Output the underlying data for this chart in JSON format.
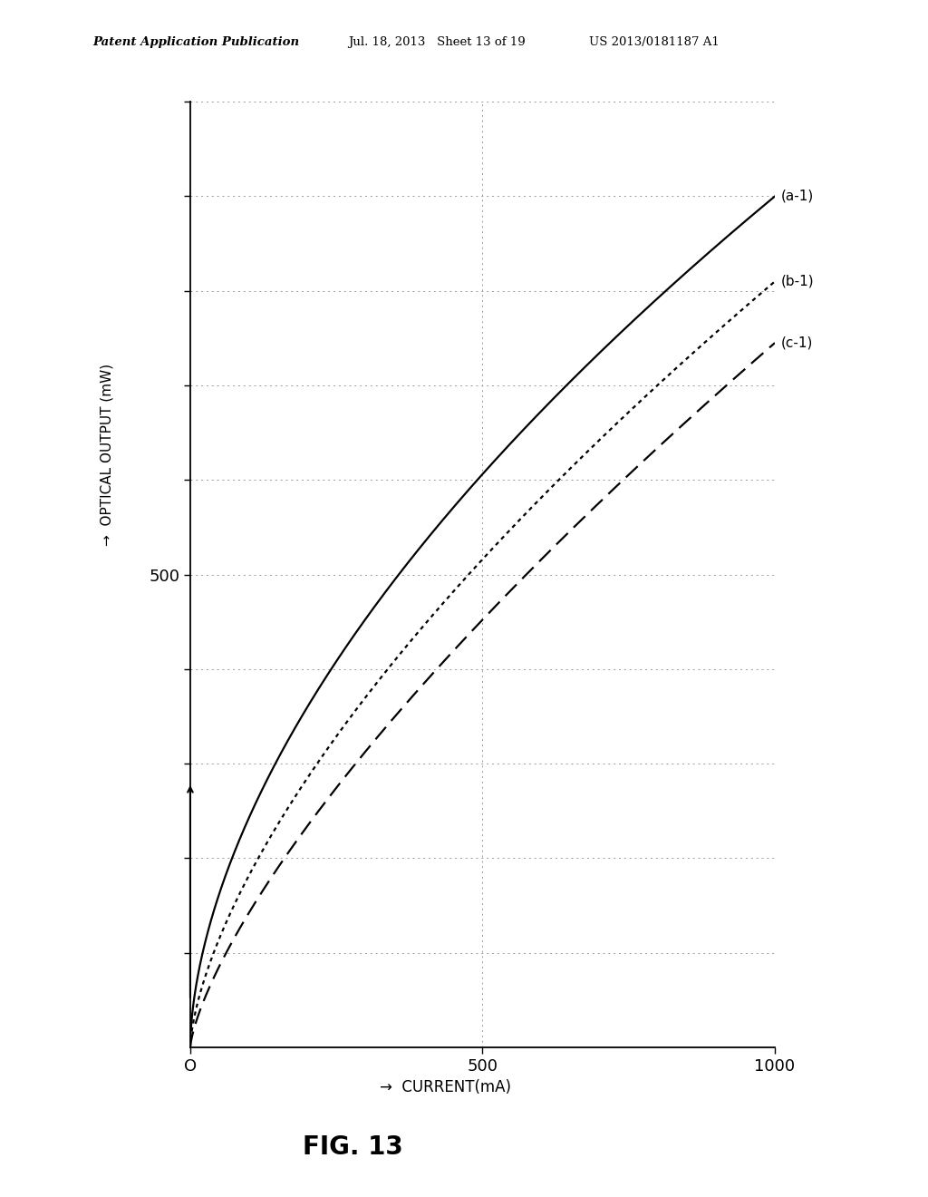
{
  "header_left": "Patent Application Publication",
  "header_mid": "Jul. 18, 2013   Sheet 13 of 19",
  "header_right": "US 2013/0181187 A1",
  "fig_label": "FIG. 13",
  "xlim": [
    0,
    1000
  ],
  "ylim": [
    0,
    1000
  ],
  "background_color": "#ffffff",
  "curve_color": "#000000",
  "grid_color": "#999999",
  "curves": [
    {
      "label": "(a-1)",
      "style": "solid",
      "y_end": 900
    },
    {
      "label": "(b-1)",
      "style": "dotted",
      "y_end": 810
    },
    {
      "label": "(c-1)",
      "style": "dashed",
      "y_end": 745
    }
  ],
  "curve_a_power": 0.57,
  "curve_b_power": 0.65,
  "curve_c_power": 0.72,
  "ytick_positions": [
    100,
    200,
    300,
    400,
    500,
    600,
    700,
    800,
    900,
    1000
  ],
  "xtick_positions": [
    0,
    500,
    1000
  ],
  "ylabel_text": "OPTICAL OUTPUT (mW)",
  "xlabel_text": "CURRENT(mA)"
}
